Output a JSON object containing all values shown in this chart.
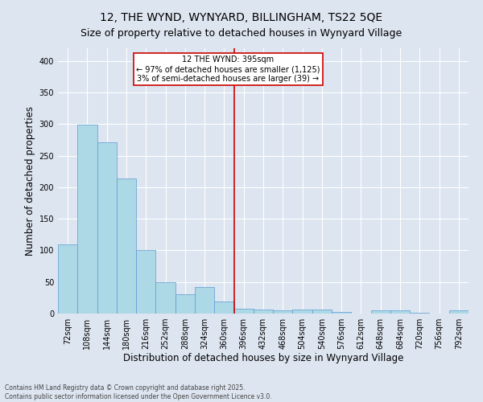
{
  "title_line1": "12, THE WYND, WYNYARD, BILLINGHAM, TS22 5QE",
  "title_line2": "Size of property relative to detached houses in Wynyard Village",
  "xlabel": "Distribution of detached houses by size in Wynyard Village",
  "ylabel": "Number of detached properties",
  "footer_line1": "Contains HM Land Registry data © Crown copyright and database right 2025.",
  "footer_line2": "Contains public sector information licensed under the Open Government Licence v3.0.",
  "bar_labels": [
    "72sqm",
    "108sqm",
    "144sqm",
    "180sqm",
    "216sqm",
    "252sqm",
    "288sqm",
    "324sqm",
    "360sqm",
    "396sqm",
    "432sqm",
    "468sqm",
    "504sqm",
    "540sqm",
    "576sqm",
    "612sqm",
    "648sqm",
    "684sqm",
    "720sqm",
    "756sqm",
    "792sqm"
  ],
  "bar_values": [
    110,
    299,
    271,
    214,
    101,
    50,
    31,
    42,
    19,
    8,
    6,
    5,
    7,
    7,
    3,
    0,
    5,
    5,
    1,
    0,
    5
  ],
  "bar_color": "#add8e6",
  "bar_edge_color": "#5b9bd5",
  "highlight_index": 9,
  "highlight_line_color": "#cc0000",
  "annotation_text": "12 THE WYND: 395sqm\n← 97% of detached houses are smaller (1,125)\n3% of semi-detached houses are larger (39) →",
  "annotation_box_color": "#ffffff",
  "annotation_box_edge": "#cc0000",
  "ylim": [
    0,
    420
  ],
  "yticks": [
    0,
    50,
    100,
    150,
    200,
    250,
    300,
    350,
    400
  ],
  "background_color": "#dde5f0",
  "axes_background": "#dde5f0",
  "grid_color": "#ffffff",
  "title_fontsize": 10,
  "subtitle_fontsize": 9,
  "tick_fontsize": 7,
  "label_fontsize": 8.5,
  "footer_fontsize": 5.5
}
